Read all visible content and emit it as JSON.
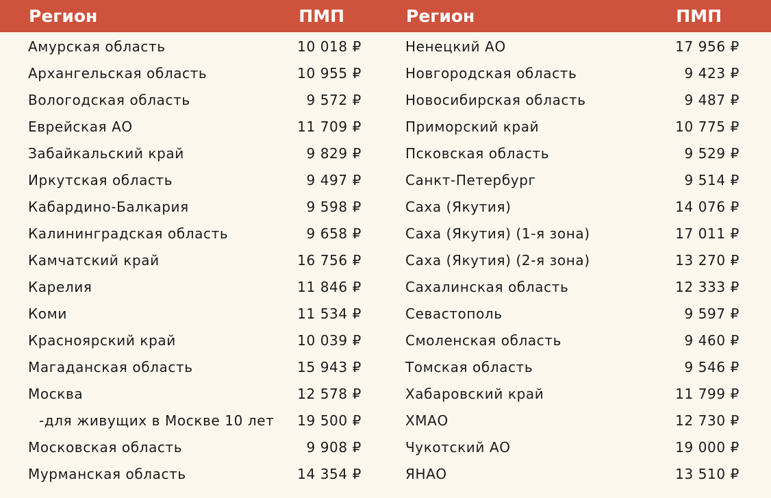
{
  "header": {
    "region_left": "Регион",
    "pmp_left": "ПМП",
    "region_right": "Регион",
    "pmp_right": "ПМП"
  },
  "colors": {
    "header_bg": "#cf523c",
    "page_bg": "#fdf8ee",
    "text": "#1a1a1a"
  },
  "left_rows": [
    {
      "region": "Амурская область",
      "value": "10 018 ₽"
    },
    {
      "region": "Архангельская область",
      "value": "10 955 ₽"
    },
    {
      "region": "Вологодская область",
      "value": "9 572 ₽"
    },
    {
      "region": "Еврейская АО",
      "value": "11 709 ₽"
    },
    {
      "region": "Забайкальский край",
      "value": "9 829 ₽"
    },
    {
      "region": "Иркутская область",
      "value": "9 497 ₽"
    },
    {
      "region": "Кабардино-Балкария",
      "value": "9 598 ₽"
    },
    {
      "region": "Калининградская область",
      "value": "9 658 ₽"
    },
    {
      "region": "Камчатский край",
      "value": "16 756 ₽"
    },
    {
      "region": "Карелия",
      "value": "11 846 ₽"
    },
    {
      "region": "Коми",
      "value": "11 534 ₽"
    },
    {
      "region": "Красноярский край",
      "value": "10 039 ₽"
    },
    {
      "region": "Магаданская область",
      "value": "15 943 ₽"
    },
    {
      "region": "Москва",
      "value": "12 578 ₽"
    },
    {
      "region": "-для живущих в Москве 10 лет",
      "value": "19 500 ₽"
    },
    {
      "region": "Московская область",
      "value": "9 908 ₽"
    },
    {
      "region": "Мурманская область",
      "value": "14 354 ₽"
    }
  ],
  "right_rows": [
    {
      "region": "Ненецкий АО",
      "value": "17 956 ₽"
    },
    {
      "region": "Новгородская область",
      "value": "9 423 ₽"
    },
    {
      "region": "Новосибирская область",
      "value": "9 487 ₽"
    },
    {
      "region": "Приморский край",
      "value": "10 775 ₽"
    },
    {
      "region": "Псковская область",
      "value": "9 529 ₽"
    },
    {
      "region": "Санкт-Петербург",
      "value": "9 514 ₽"
    },
    {
      "region": "Саха (Якутия)",
      "value": "14 076 ₽"
    },
    {
      "region": "Саха (Якутия) (1-я зона)",
      "value": "17 011 ₽"
    },
    {
      "region": "Саха (Якутия) (2-я зона)",
      "value": "13 270 ₽"
    },
    {
      "region": "Сахалинская область",
      "value": "12 333 ₽"
    },
    {
      "region": "Севастополь",
      "value": "9 597 ₽"
    },
    {
      "region": "Смоленская область",
      "value": "9 460 ₽"
    },
    {
      "region": "Томская область",
      "value": "9 546 ₽"
    },
    {
      "region": "Хабаровский край",
      "value": "11 799 ₽"
    },
    {
      "region": "ХМАО",
      "value": "12 730 ₽"
    },
    {
      "region": "Чукотский АО",
      "value": "19 000 ₽"
    },
    {
      "region": "ЯНАО",
      "value": "13 510 ₽"
    }
  ]
}
